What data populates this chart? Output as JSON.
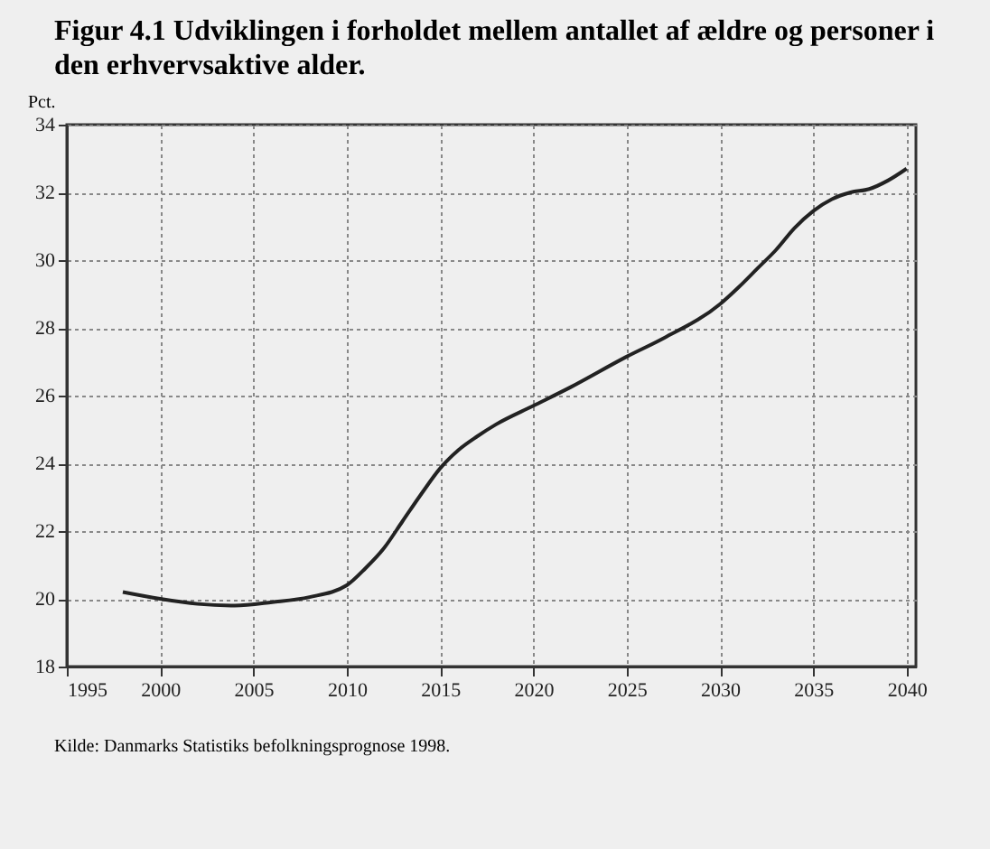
{
  "chart_data": {
    "type": "line",
    "title": "Figur 4.1   Udviklingen i forholdet mellem antallet af ældre og personer i den erhvervsaktive alder.",
    "ylabel": "Pct.",
    "annotations": [
      "Kilde:   Danmarks Statistiks befolkningsprognose 1998."
    ],
    "x": [
      1998,
      2000,
      2002,
      2004,
      2006,
      2008,
      2010,
      2011,
      2012,
      2013,
      2014,
      2015,
      2016,
      2017,
      2018,
      2020,
      2022,
      2025,
      2027,
      2030,
      2031,
      2032,
      2033,
      2034,
      2035,
      2036,
      2037,
      2038,
      2039,
      2040
    ],
    "series": [
      {
        "color": "#222222",
        "values": [
          20.2,
          20.0,
          19.85,
          19.8,
          19.9,
          20.05,
          20.4,
          20.9,
          21.5,
          22.3,
          23.1,
          23.85,
          24.4,
          24.8,
          25.15,
          25.7,
          26.25,
          27.15,
          27.7,
          28.7,
          29.2,
          29.75,
          30.3,
          30.95,
          31.45,
          31.8,
          32.0,
          32.1,
          32.35,
          32.7
        ]
      }
    ],
    "xlim": [
      1995,
      2040.5
    ],
    "xticks": [
      1995,
      2000,
      2005,
      2010,
      2015,
      2020,
      2025,
      2030,
      2035,
      2040
    ],
    "ylim": [
      18,
      34
    ],
    "yticks": [
      18,
      20,
      22,
      24,
      26,
      28,
      30,
      32,
      34
    ],
    "grid": true,
    "line_style": "solid",
    "marker": "none"
  }
}
